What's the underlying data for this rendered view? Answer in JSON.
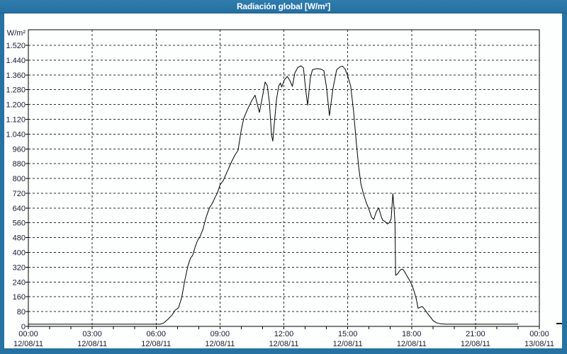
{
  "window": {
    "title": "Radiación global [W/m²]"
  },
  "colors": {
    "frame": "#2672a3",
    "titlebar": "#2470a1",
    "plot_background": "#fdfefe",
    "grid": "#2b2b2b",
    "line": "#000000",
    "text": "#191932"
  },
  "chart_data": {
    "type": "line",
    "title": "Radiación global [W/m²]",
    "ylabel": "W/m²",
    "xlabel": "",
    "ylim": [
      0,
      1604
    ],
    "y_tick_step": 80,
    "y_ticks": [
      0,
      80,
      160,
      240,
      320,
      400,
      480,
      560,
      640,
      720,
      800,
      880,
      960,
      1040,
      1120,
      1200,
      1280,
      1360,
      1440,
      1520
    ],
    "y_tick_labels": [
      "0",
      "80",
      "160",
      "240",
      "320",
      "400",
      "480",
      "560",
      "640",
      "720",
      "800",
      "880",
      "960",
      "1.040",
      "1.120",
      "1.200",
      "1.280",
      "1.360",
      "1.440",
      "1.520"
    ],
    "x_ticks_hours": [
      0,
      3,
      6,
      9,
      12,
      15,
      18,
      21,
      24
    ],
    "x_tick_times": [
      "00:00",
      "03:00",
      "06:00",
      "09:00",
      "12:00",
      "15:00",
      "18:00",
      "21:00",
      "00:00"
    ],
    "x_tick_dates": [
      "12/08/11",
      "12/08/11",
      "12/08/11",
      "12/08/11",
      "12/08/11",
      "12/08/11",
      "12/08/11",
      "12/08/11",
      "13/08/11"
    ],
    "grid": "dashed",
    "legend": "none",
    "series": [
      {
        "name": "Radiación global",
        "points": [
          [
            0,
            12
          ],
          [
            6.2,
            12
          ],
          [
            6.35,
            18
          ],
          [
            6.55,
            38
          ],
          [
            6.75,
            62
          ],
          [
            6.9,
            88
          ],
          [
            7.05,
            100
          ],
          [
            7.2,
            155
          ],
          [
            7.35,
            250
          ],
          [
            7.5,
            330
          ],
          [
            7.62,
            370
          ],
          [
            7.72,
            385
          ],
          [
            7.85,
            435
          ],
          [
            7.95,
            465
          ],
          [
            8.05,
            482
          ],
          [
            8.2,
            525
          ],
          [
            8.35,
            590
          ],
          [
            8.5,
            640
          ],
          [
            8.65,
            668
          ],
          [
            8.78,
            700
          ],
          [
            8.88,
            722
          ],
          [
            9.0,
            765
          ],
          [
            9.15,
            788
          ],
          [
            9.35,
            840
          ],
          [
            9.55,
            892
          ],
          [
            9.7,
            926
          ],
          [
            9.85,
            952
          ],
          [
            10.0,
            1062
          ],
          [
            10.12,
            1126
          ],
          [
            10.3,
            1175
          ],
          [
            10.5,
            1222
          ],
          [
            10.65,
            1250
          ],
          [
            10.85,
            1157
          ],
          [
            11.0,
            1245
          ],
          [
            11.12,
            1322
          ],
          [
            11.22,
            1302
          ],
          [
            11.32,
            1212
          ],
          [
            11.42,
            1035
          ],
          [
            11.48,
            1002
          ],
          [
            11.56,
            1108
          ],
          [
            11.66,
            1232
          ],
          [
            11.76,
            1300
          ],
          [
            11.84,
            1316
          ],
          [
            11.9,
            1294
          ],
          [
            12.02,
            1332
          ],
          [
            12.16,
            1352
          ],
          [
            12.28,
            1330
          ],
          [
            12.4,
            1298
          ],
          [
            12.52,
            1372
          ],
          [
            12.66,
            1400
          ],
          [
            12.8,
            1409
          ],
          [
            12.92,
            1398
          ],
          [
            13.04,
            1268
          ],
          [
            13.12,
            1196
          ],
          [
            13.24,
            1342
          ],
          [
            13.34,
            1388
          ],
          [
            13.55,
            1394
          ],
          [
            13.75,
            1391
          ],
          [
            13.88,
            1382
          ],
          [
            14.0,
            1295
          ],
          [
            14.14,
            1140
          ],
          [
            14.3,
            1282
          ],
          [
            14.48,
            1388
          ],
          [
            14.65,
            1404
          ],
          [
            14.75,
            1408
          ],
          [
            14.88,
            1391
          ],
          [
            15.0,
            1354
          ],
          [
            15.14,
            1300
          ],
          [
            15.28,
            1158
          ],
          [
            15.4,
            1000
          ],
          [
            15.52,
            858
          ],
          [
            15.62,
            768
          ],
          [
            15.74,
            716
          ],
          [
            15.86,
            672
          ],
          [
            15.98,
            638
          ],
          [
            16.12,
            590
          ],
          [
            16.22,
            578
          ],
          [
            16.34,
            620
          ],
          [
            16.46,
            640
          ],
          [
            16.56,
            598
          ],
          [
            16.64,
            574
          ],
          [
            16.74,
            568
          ],
          [
            16.86,
            554
          ],
          [
            16.96,
            562
          ],
          [
            17.04,
            582
          ],
          [
            17.12,
            718
          ],
          [
            17.18,
            636
          ],
          [
            17.22,
            558
          ],
          [
            17.25,
            276
          ],
          [
            17.34,
            284
          ],
          [
            17.48,
            306
          ],
          [
            17.58,
            310
          ],
          [
            17.68,
            294
          ],
          [
            17.8,
            270
          ],
          [
            17.92,
            246
          ],
          [
            18.02,
            222
          ],
          [
            18.12,
            188
          ],
          [
            18.22,
            148
          ],
          [
            18.3,
            98
          ],
          [
            18.4,
            103
          ],
          [
            18.5,
            108
          ],
          [
            18.6,
            94
          ],
          [
            18.72,
            74
          ],
          [
            18.86,
            54
          ],
          [
            19.0,
            32
          ],
          [
            19.16,
            20
          ],
          [
            19.35,
            14
          ],
          [
            19.6,
            12
          ],
          [
            20.5,
            12
          ],
          [
            21.5,
            12
          ],
          [
            22.5,
            12
          ],
          [
            23.0,
            12
          ]
        ]
      }
    ]
  }
}
